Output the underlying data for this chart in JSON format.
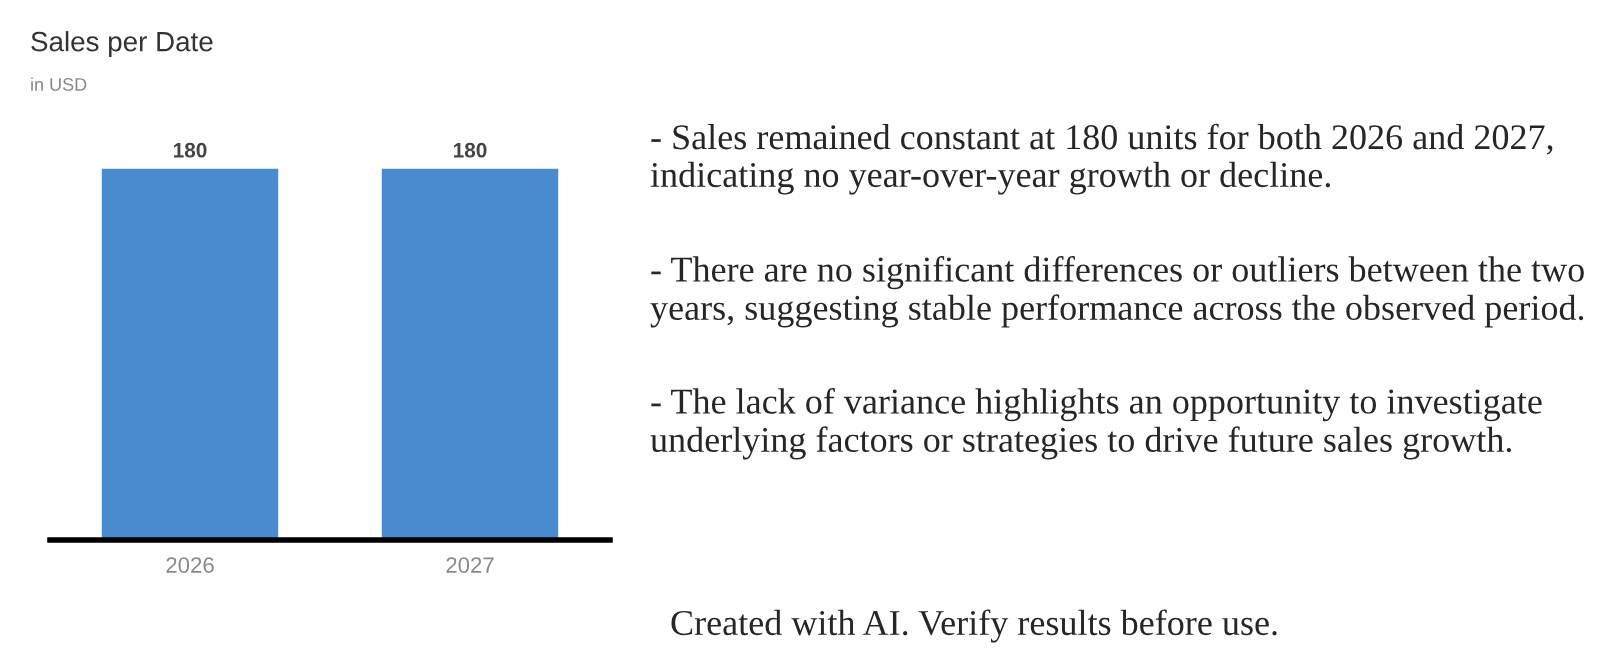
{
  "chart_data": {
    "type": "bar",
    "title": "Sales per Date",
    "subtitle": "in USD",
    "categories": [
      "2026",
      "2027"
    ],
    "values": [
      180,
      180
    ],
    "color": "#4a8bd0",
    "data_labels": true,
    "grid": false,
    "legend": false,
    "annotations": [
      "- Sales remained constant at 180 units for both 2026 and 2027, indicating no year-over-year growth or decline.",
      "- There are no significant differences or outliers between the two years, suggesting stable performance across the observed period.",
      "- The lack of variance highlights an opportunity to investigate underlying factors or strategies to drive future sales growth.",
      "Created with AI. Verify results before use."
    ]
  }
}
